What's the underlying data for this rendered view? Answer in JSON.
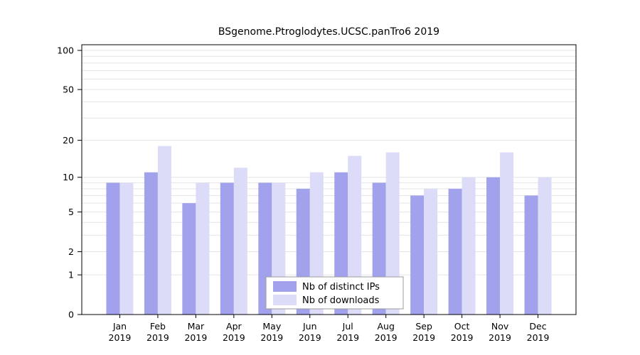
{
  "chart_data": {
    "type": "bar",
    "title": "BSgenome.Ptroglodytes.UCSC.panTro6 2019",
    "year_label": "2019",
    "categories": [
      "Jan",
      "Feb",
      "Mar",
      "Apr",
      "May",
      "Jun",
      "Jul",
      "Aug",
      "Sep",
      "Oct",
      "Nov",
      "Dec"
    ],
    "series": [
      {
        "name": "Nb of distinct IPs",
        "color": "#a1a1ec",
        "values": [
          9,
          11,
          6,
          9,
          9,
          8,
          11,
          9,
          7,
          8,
          10,
          7
        ]
      },
      {
        "name": "Nb of downloads",
        "color": "#dcdcf9",
        "values": [
          9,
          18,
          9,
          12,
          9,
          11,
          15,
          16,
          8,
          10,
          16,
          10
        ]
      }
    ],
    "yscale": "log1p",
    "ylim": [
      0,
      100
    ],
    "yticks": [
      0,
      1,
      2,
      5,
      10,
      20,
      50,
      100
    ],
    "gridlines": [
      1,
      2,
      3,
      4,
      5,
      6,
      7,
      8,
      9,
      10,
      20,
      30,
      40,
      50,
      60,
      70,
      80,
      90,
      100
    ],
    "grid": true,
    "legend_position": "bottom-center",
    "xlabel": "",
    "ylabel": ""
  },
  "colors": {
    "background": "#ffffff",
    "grid": "#e4e4e4",
    "axis": "#000000",
    "text": "#000000",
    "legend_border": "#9b9b9b",
    "legend_fill": "#ffffff"
  }
}
